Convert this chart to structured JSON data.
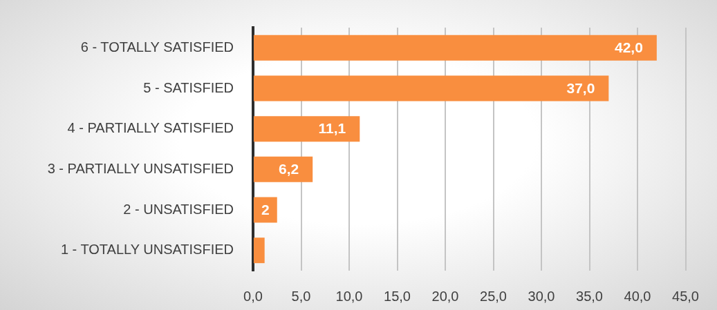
{
  "chart_data": {
    "type": "bar",
    "orientation": "horizontal",
    "categories": [
      "6 - TOTALLY SATISFIED",
      "5 - SATISFIED",
      "4 - PARTIALLY SATISFIED",
      "3 - PARTIALLY UNSATISFIED",
      "2 - UNSATISFIED",
      "1 - TOTALLY UNSATISFIED"
    ],
    "values": [
      42.0,
      37.0,
      11.1,
      6.2,
      2.5,
      1.2
    ],
    "value_labels": [
      "42,0",
      "37,0",
      "11,1",
      "6,2",
      "2",
      null
    ],
    "color": "#f98e3f",
    "xlim": [
      0,
      45
    ],
    "xticks": [
      {
        "value": 0,
        "label": "0,0"
      },
      {
        "value": 5,
        "label": "5,0"
      },
      {
        "value": 10,
        "label": "10,0"
      },
      {
        "value": 15,
        "label": "15,0"
      },
      {
        "value": 20,
        "label": "20,0"
      },
      {
        "value": 25,
        "label": "25,0"
      },
      {
        "value": 30,
        "label": "30,0"
      },
      {
        "value": 35,
        "label": "35,0"
      },
      {
        "value": 40,
        "label": "40,0"
      },
      {
        "value": 45,
        "label": "45,0"
      }
    ],
    "grid": "x"
  }
}
